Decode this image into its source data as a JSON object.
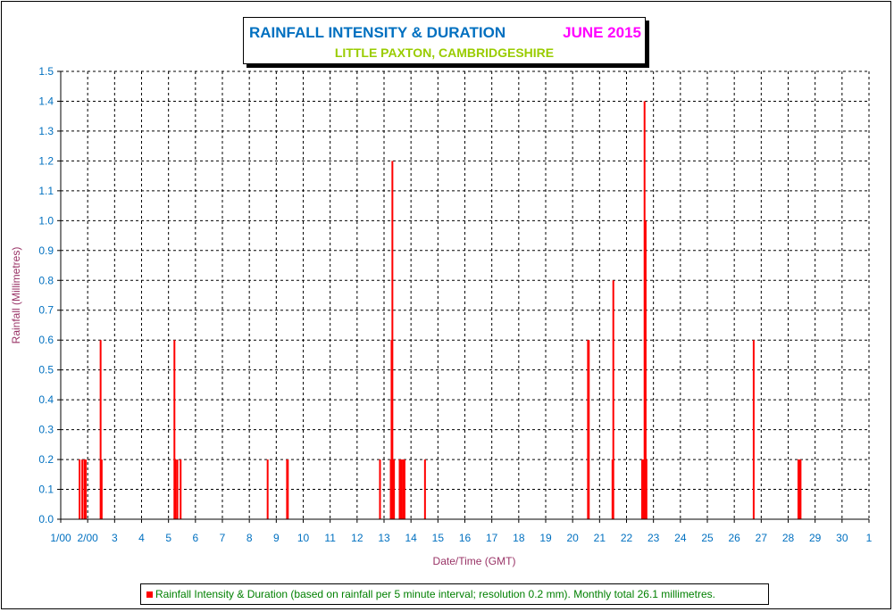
{
  "chart_data": {
    "type": "bar",
    "title": "RAINFALL INTENSITY & DURATION",
    "title_period": "JUNE 2015",
    "subtitle": "LITTLE PAXTON, CAMBRIDGESHIRE",
    "xlabel": "Date/Time (GMT)",
    "ylabel": "Rainfall (Millimetres)",
    "ylim": [
      0,
      1.5
    ],
    "y_ticks": [
      "0.0",
      "0.1",
      "0.2",
      "0.3",
      "0.4",
      "0.5",
      "0.6",
      "0.7",
      "0.8",
      "0.9",
      "1.0",
      "1.1",
      "1.2",
      "1.3",
      "1.4",
      "1.5"
    ],
    "xlim": [
      1,
      31
    ],
    "x_ticks": [
      "1/00",
      "2/00",
      "3",
      "4",
      "5",
      "6",
      "7",
      "8",
      "9",
      "10",
      "11",
      "12",
      "13",
      "14",
      "15",
      "16",
      "17",
      "18",
      "19",
      "20",
      "21",
      "22",
      "23",
      "24",
      "25",
      "26",
      "27",
      "28",
      "29",
      "30",
      "1"
    ],
    "grid": true,
    "legend_placement": "bottom",
    "series": [
      {
        "name": "Rainfall Intensity & Duration (based on rainfall per 5 minute interval; resolution 0.2 mm). Monthly total 26.1 millimetres.",
        "color": "#ff0000",
        "points": [
          {
            "x": 1.7,
            "y": 0.2
          },
          {
            "x": 1.8,
            "y": 0.2
          },
          {
            "x": 1.88,
            "y": 0.2
          },
          {
            "x": 1.93,
            "y": 0.2
          },
          {
            "x": 2.48,
            "y": 0.6
          },
          {
            "x": 2.52,
            "y": 0.2
          },
          {
            "x": 5.22,
            "y": 0.6
          },
          {
            "x": 5.26,
            "y": 0.2
          },
          {
            "x": 5.33,
            "y": 0.2
          },
          {
            "x": 5.45,
            "y": 0.2
          },
          {
            "x": 8.68,
            "y": 0.2
          },
          {
            "x": 9.4,
            "y": 0.2
          },
          {
            "x": 9.43,
            "y": 0.2
          },
          {
            "x": 12.85,
            "y": 0.2
          },
          {
            "x": 13.25,
            "y": 0.2
          },
          {
            "x": 13.28,
            "y": 0.6
          },
          {
            "x": 13.31,
            "y": 1.2
          },
          {
            "x": 13.34,
            "y": 0.2
          },
          {
            "x": 13.37,
            "y": 0.2
          },
          {
            "x": 13.58,
            "y": 0.2
          },
          {
            "x": 13.62,
            "y": 0.2
          },
          {
            "x": 13.66,
            "y": 0.2
          },
          {
            "x": 13.72,
            "y": 0.2
          },
          {
            "x": 13.76,
            "y": 0.2
          },
          {
            "x": 14.52,
            "y": 0.2
          },
          {
            "x": 20.57,
            "y": 0.6
          },
          {
            "x": 20.6,
            "y": 0.6
          },
          {
            "x": 21.48,
            "y": 0.2
          },
          {
            "x": 21.51,
            "y": 0.8
          },
          {
            "x": 22.58,
            "y": 0.2
          },
          {
            "x": 22.64,
            "y": 0.2
          },
          {
            "x": 22.67,
            "y": 1.4
          },
          {
            "x": 22.71,
            "y": 1.0
          },
          {
            "x": 22.74,
            "y": 0.2
          },
          {
            "x": 26.72,
            "y": 0.6
          },
          {
            "x": 28.38,
            "y": 0.2
          },
          {
            "x": 28.42,
            "y": 0.2
          },
          {
            "x": 28.46,
            "y": 0.2
          }
        ]
      }
    ]
  }
}
